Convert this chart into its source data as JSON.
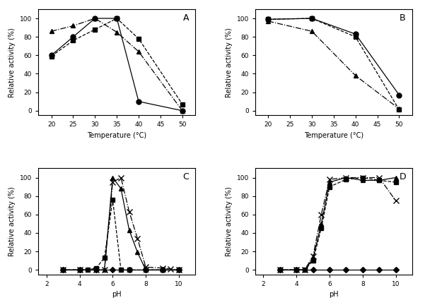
{
  "panel_A": {
    "title": "A",
    "xlabel": "Temperature (°C)",
    "ylabel": "Relative activity (%)",
    "xlim": [
      17,
      53
    ],
    "ylim": [
      -5,
      110
    ],
    "xticks": [
      20,
      25,
      30,
      35,
      40,
      45,
      50
    ],
    "yticks": [
      0,
      20,
      40,
      60,
      80,
      100
    ],
    "series": [
      {
        "x": [
          20,
          25,
          30,
          35,
          40,
          50
        ],
        "y": [
          60,
          80,
          100,
          100,
          10,
          0
        ],
        "marker": "o",
        "linestyle": "-",
        "markersize": 5
      },
      {
        "x": [
          20,
          25,
          30,
          35,
          40,
          50
        ],
        "y": [
          59,
          76,
          88,
          100,
          78,
          7
        ],
        "marker": "s",
        "linestyle": "--",
        "markersize": 5
      },
      {
        "x": [
          20,
          25,
          30,
          35,
          40,
          50
        ],
        "y": [
          86,
          92,
          100,
          85,
          64,
          0
        ],
        "marker": "^",
        "linestyle": "-.",
        "markersize": 5
      }
    ]
  },
  "panel_B": {
    "title": "B",
    "xlabel": "Temperature (°C)",
    "ylabel": "Relative activity (%)",
    "xlim": [
      17,
      53
    ],
    "ylim": [
      -5,
      110
    ],
    "xticks": [
      20,
      25,
      30,
      35,
      40,
      45,
      50
    ],
    "yticks": [
      0,
      20,
      40,
      60,
      80,
      100
    ],
    "series": [
      {
        "x": [
          20,
          30,
          40,
          50
        ],
        "y": [
          99,
          100,
          83,
          17
        ],
        "marker": "o",
        "linestyle": "-",
        "markersize": 5
      },
      {
        "x": [
          20,
          30,
          40,
          50
        ],
        "y": [
          99,
          100,
          80,
          1
        ],
        "marker": "s",
        "linestyle": "--",
        "markersize": 5
      },
      {
        "x": [
          20,
          30,
          40,
          50
        ],
        "y": [
          97,
          86,
          38,
          2
        ],
        "marker": "^",
        "linestyle": "-.",
        "markersize": 5
      }
    ]
  },
  "panel_C": {
    "title": "C",
    "xlabel": "pH",
    "ylabel": "Relative activity (%)",
    "xlim": [
      1.5,
      11
    ],
    "ylim": [
      -5,
      110
    ],
    "xticks": [
      2,
      4,
      6,
      8,
      10
    ],
    "yticks": [
      0,
      20,
      40,
      60,
      80,
      100
    ],
    "series": [
      {
        "x": [
          3,
          4,
          5,
          6,
          7,
          8,
          9,
          10
        ],
        "y": [
          0,
          0,
          0,
          0,
          0,
          0,
          0,
          0
        ],
        "marker": "D",
        "linestyle": "-",
        "markersize": 4
      },
      {
        "x": [
          3,
          4,
          4.5,
          5,
          5.5,
          6,
          6.5,
          7,
          8,
          9,
          10
        ],
        "y": [
          0,
          0,
          0,
          2,
          13,
          76,
          0,
          0,
          0,
          0,
          0
        ],
        "marker": "s",
        "linestyle": "--",
        "markersize": 5
      },
      {
        "x": [
          3,
          4,
          5,
          5.5,
          6,
          6.5,
          7,
          7.5,
          8,
          9,
          10
        ],
        "y": [
          0,
          0,
          0,
          0,
          100,
          88,
          43,
          19,
          0,
          0,
          0
        ],
        "marker": "^",
        "linestyle": "-",
        "markersize": 5
      },
      {
        "x": [
          3,
          4,
          5,
          5.5,
          6,
          6.5,
          7,
          7.5,
          8,
          9,
          9.5,
          10
        ],
        "y": [
          0,
          0,
          0,
          0,
          95,
          100,
          63,
          34,
          3,
          2,
          1,
          0
        ],
        "marker": "x",
        "linestyle": "-.",
        "markersize": 6
      }
    ]
  },
  "panel_D": {
    "title": "D",
    "xlabel": "pH",
    "ylabel": "Relative activity (%)",
    "xlim": [
      1.5,
      11
    ],
    "ylim": [
      -5,
      110
    ],
    "xticks": [
      2,
      4,
      6,
      8,
      10
    ],
    "yticks": [
      0,
      20,
      40,
      60,
      80,
      100
    ],
    "series": [
      {
        "x": [
          3,
          4,
          5,
          6,
          7,
          8,
          9,
          10
        ],
        "y": [
          0,
          0,
          0,
          0,
          0,
          0,
          0,
          0
        ],
        "marker": "D",
        "linestyle": "-",
        "markersize": 4
      },
      {
        "x": [
          3,
          4,
          4.5,
          5,
          5.5,
          6,
          7,
          8,
          9,
          10
        ],
        "y": [
          0,
          0,
          0,
          10,
          45,
          90,
          98,
          100,
          97,
          95
        ],
        "marker": "s",
        "linestyle": "--",
        "markersize": 5
      },
      {
        "x": [
          3,
          4,
          4.5,
          5,
          5.5,
          6,
          7,
          8,
          9,
          10
        ],
        "y": [
          0,
          0,
          0,
          12,
          50,
          95,
          100,
          97,
          97,
          100
        ],
        "marker": "^",
        "linestyle": "-",
        "markersize": 5
      },
      {
        "x": [
          3,
          4,
          4.5,
          5,
          5.5,
          6,
          7,
          8,
          9,
          10
        ],
        "y": [
          0,
          0,
          0,
          15,
          60,
          98,
          100,
          100,
          100,
          75
        ],
        "marker": "x",
        "linestyle": "-.",
        "markersize": 6
      }
    ]
  }
}
